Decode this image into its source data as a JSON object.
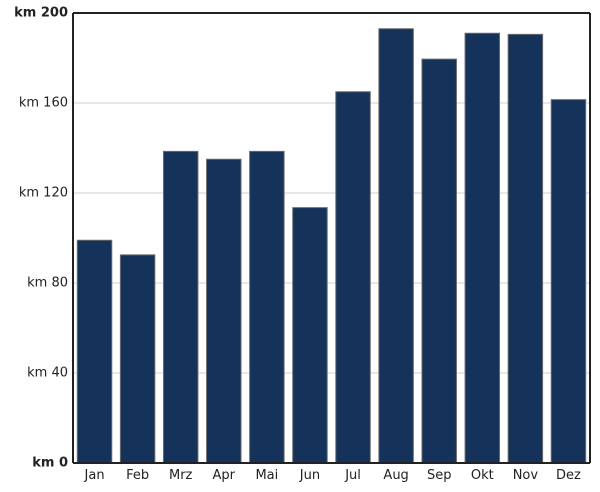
{
  "chart_data": {
    "type": "bar",
    "categories": [
      "Jan",
      "Feb",
      "Mrz",
      "Apr",
      "Mai",
      "Jun",
      "Jul",
      "Aug",
      "Sep",
      "Okt",
      "Nov",
      "Dez"
    ],
    "values": [
      99,
      92.5,
      138.5,
      135,
      138.5,
      113.5,
      165,
      193,
      179.5,
      191,
      190.5,
      161.5
    ],
    "ylim": [
      0,
      200
    ],
    "yticks": [
      0,
      40,
      80,
      120,
      160,
      200
    ],
    "ytick_labels": [
      "km 0",
      "km 40",
      "km 80",
      "km 120",
      "km 160",
      "km 200"
    ],
    "bold_ticks": [
      0,
      200
    ],
    "grid": true,
    "bar_color": "#14325a"
  }
}
